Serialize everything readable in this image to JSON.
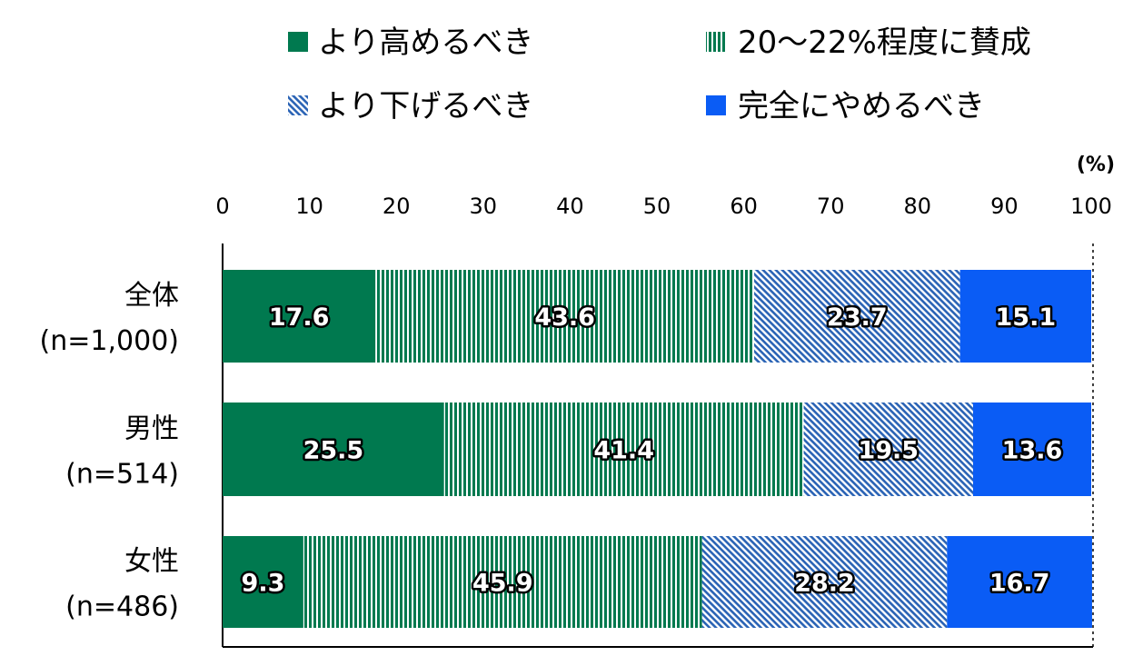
{
  "chart_data": {
    "type": "bar",
    "orientation": "horizontal",
    "stacked": true,
    "unit_label": "(%)",
    "xlim": [
      0,
      100
    ],
    "x_ticks": [
      0,
      10,
      20,
      30,
      40,
      50,
      60,
      70,
      80,
      90,
      100
    ],
    "categories": [
      {
        "name": "全体",
        "n": "(n=1,000)"
      },
      {
        "name": "男性",
        "n": "(n=514)"
      },
      {
        "name": "女性",
        "n": "(n=486)"
      }
    ],
    "series": [
      {
        "name": "より高めるべき",
        "values": [
          17.6,
          25.5,
          9.3
        ],
        "color": "#00794f",
        "pattern": "solid"
      },
      {
        "name": "20～22%程度に賛成",
        "values": [
          43.6,
          41.4,
          45.9
        ],
        "color": "#00794f",
        "pattern": "vertical-stripes"
      },
      {
        "name": "より下げるべき",
        "values": [
          23.7,
          19.5,
          28.2
        ],
        "color": "#2a63b5",
        "pattern": "diagonal-hatch"
      },
      {
        "name": "完全にやめるべき",
        "values": [
          15.1,
          13.6,
          16.7
        ],
        "color": "#0a5cf5",
        "pattern": "solid"
      }
    ],
    "legend_position": "top",
    "grid": false,
    "xlabel": "",
    "ylabel": ""
  }
}
